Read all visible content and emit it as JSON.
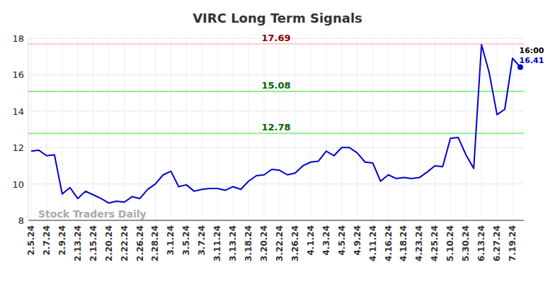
{
  "chart_data": {
    "type": "line",
    "title": "VIRC Long Term Signals",
    "watermark": "Stock Traders Daily",
    "categories": [
      "2.5.24",
      null,
      "2.7.24",
      null,
      "2.9.24",
      null,
      "2.13.24",
      null,
      "2.15.24",
      null,
      "2.20.24",
      null,
      "2.22.24",
      null,
      "2.26.24",
      null,
      "2.28.24",
      null,
      "3.1.24",
      null,
      "3.5.24",
      null,
      "3.7.24",
      null,
      "3.11.24",
      null,
      "3.13.24",
      null,
      "3.18.24",
      null,
      "3.20.24",
      null,
      "3.22.24",
      null,
      "3.26.24",
      null,
      "4.1.24",
      null,
      "4.3.24",
      null,
      "4.5.24",
      null,
      "4.9.24",
      null,
      "4.11.24",
      null,
      "4.16.24",
      null,
      "4.18.24",
      null,
      "4.23.24",
      null,
      "4.25.24",
      null,
      "5.10.24",
      null,
      "5.30.24",
      null,
      "6.13.24",
      null,
      "6.27.24",
      null,
      "7.19.24",
      null
    ],
    "values": [
      11.8,
      11.85,
      11.55,
      11.6,
      9.45,
      9.8,
      9.2,
      9.6,
      9.4,
      9.2,
      8.95,
      9.05,
      9.0,
      9.3,
      9.2,
      9.7,
      10.0,
      10.5,
      10.7,
      9.85,
      9.95,
      9.6,
      9.7,
      9.75,
      9.75,
      9.65,
      9.85,
      9.7,
      10.15,
      10.45,
      10.5,
      10.8,
      10.75,
      10.5,
      10.6,
      11.0,
      11.2,
      11.25,
      11.8,
      11.55,
      12.0,
      12.0,
      11.7,
      11.2,
      11.15,
      10.15,
      10.5,
      10.3,
      10.35,
      10.3,
      10.35,
      10.65,
      11.0,
      10.95,
      12.5,
      12.55,
      11.6,
      10.85,
      17.65,
      16.1,
      13.8,
      14.1,
      16.9,
      16.41
    ],
    "color": "#0000cc",
    "marker": "last",
    "last_label": "16:00",
    "reference_lines": [
      {
        "value": 17.69,
        "color": "#ffcccc"
      },
      {
        "value": 15.08,
        "color": "#90ee90"
      },
      {
        "value": 12.78,
        "color": "#90ee90"
      }
    ],
    "ylim": [
      8,
      18
    ],
    "yticks": [
      8,
      10,
      12,
      14,
      16,
      18
    ],
    "grid": true
  }
}
